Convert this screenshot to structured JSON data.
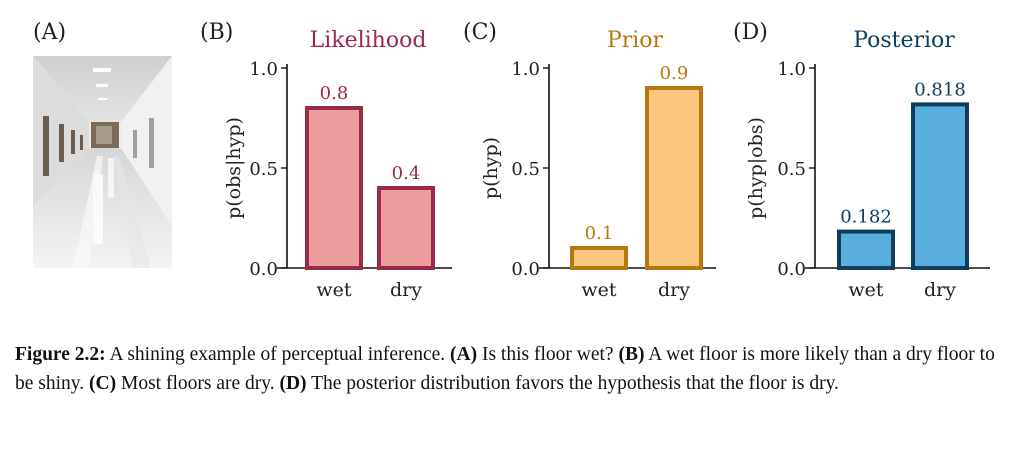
{
  "panels": {
    "A": {
      "letter": "(A)"
    },
    "B": {
      "letter": "(B)"
    },
    "C": {
      "letter": "(C)"
    },
    "D": {
      "letter": "(D)"
    }
  },
  "chart_data": [
    {
      "type": "bar",
      "title": "Likelihood",
      "ylabel": "p(obs|hyp)",
      "categories": [
        "wet",
        "dry"
      ],
      "values": [
        0.8,
        0.4
      ],
      "value_labels": [
        "0.8",
        "0.4"
      ],
      "ylim": [
        0,
        1
      ],
      "yticks": [
        "0.0",
        "0.5",
        "1.0"
      ],
      "colors": {
        "fill": "#ec9c9c",
        "stroke": "#9a2a4a",
        "title": "#9a2a4a"
      }
    },
    {
      "type": "bar",
      "title": "Prior",
      "ylabel": "p(hyp)",
      "categories": [
        "wet",
        "dry"
      ],
      "values": [
        0.1,
        0.9
      ],
      "value_labels": [
        "0.1",
        "0.9"
      ],
      "ylim": [
        0,
        1
      ],
      "yticks": [
        "0.0",
        "0.5",
        "1.0"
      ],
      "colors": {
        "fill": "#fbc67e",
        "stroke": "#b8780e",
        "title": "#b8780e"
      }
    },
    {
      "type": "bar",
      "title": "Posterior",
      "ylabel": "p(hyp|obs)",
      "categories": [
        "wet",
        "dry"
      ],
      "values": [
        0.182,
        0.818
      ],
      "value_labels": [
        "0.182",
        "0.818"
      ],
      "ylim": [
        0,
        1
      ],
      "yticks": [
        "0.0",
        "0.5",
        "1.0"
      ],
      "colors": {
        "fill": "#5aaede",
        "stroke": "#0f3d5c",
        "title": "#0f3d5c"
      }
    }
  ],
  "caption": {
    "figure_label": "Figure 2.2:",
    "intro": " A shining example of perceptual inference. ",
    "a_label": "(A)",
    "a_text": " Is this floor wet? ",
    "b_label": "(B)",
    "b_text": " A wet floor is more likely than a dry floor to be shiny. ",
    "c_label": "(C)",
    "c_text": " Most floors are dry. ",
    "d_label": "(D)",
    "d_text": " The posterior distribution favors the hypothesis that the floor is dry."
  }
}
